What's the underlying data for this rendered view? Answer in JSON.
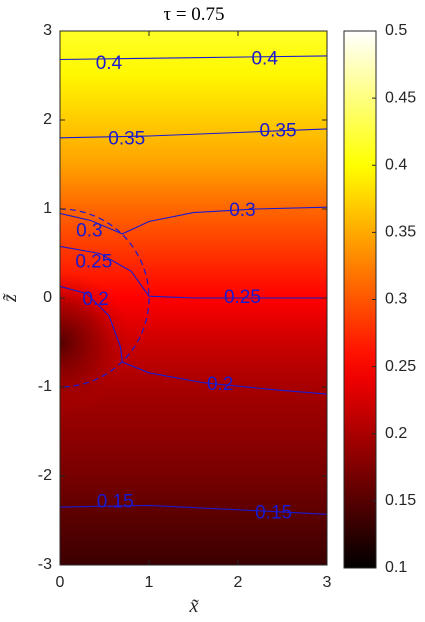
{
  "chart_data": {
    "type": "heatmap",
    "title": "τ  = 0.75",
    "xlabel": "x̃",
    "ylabel": "z̃",
    "xlim": [
      0,
      3
    ],
    "ylim": [
      -3,
      3
    ],
    "x_ticks": [
      0,
      1,
      2,
      3
    ],
    "y_ticks": [
      -3,
      -2,
      -1,
      0,
      1,
      2,
      3
    ],
    "x_tick_labels": [
      "0",
      "1",
      "2",
      "3"
    ],
    "y_tick_labels": [
      "-3",
      "-2",
      "-1",
      "0",
      "1",
      "2",
      "3"
    ],
    "colormap": "hot",
    "colorbar": {
      "limits": [
        0.1,
        0.5
      ],
      "ticks": [
        0.1,
        0.15,
        0.2,
        0.25,
        0.3,
        0.35,
        0.4,
        0.45,
        0.5
      ],
      "tick_labels": [
        "0.1",
        "0.15",
        "0.2",
        "0.25",
        "0.3",
        "0.35",
        "0.4",
        "0.45",
        "0.5"
      ]
    },
    "color_field": [
      {
        "z": 3.0,
        "value": 0.415
      },
      {
        "z": 2.5,
        "value": 0.395
      },
      {
        "z": 2.0,
        "value": 0.37
      },
      {
        "z": 1.5,
        "value": 0.345
      },
      {
        "z": 1.0,
        "value": 0.31
      },
      {
        "z": 0.5,
        "value": 0.28
      },
      {
        "z": 0.0,
        "value": 0.25
      },
      {
        "z": -0.5,
        "value": 0.22
      },
      {
        "z": -1.0,
        "value": 0.198
      },
      {
        "z": -1.5,
        "value": 0.185
      },
      {
        "z": -2.0,
        "value": 0.17
      },
      {
        "z": -2.5,
        "value": 0.152
      },
      {
        "z": -3.0,
        "value": 0.135
      }
    ],
    "inner_region": {
      "center_x": 0.0,
      "center_z": -0.5,
      "value": 0.15,
      "radius": 0.8
    },
    "boundary_circle": {
      "center_x": 0.0,
      "center_z": 0.0,
      "radius": 1.0,
      "style": "dashed"
    },
    "contours": [
      {
        "level": "0.4",
        "points": [
          [
            0,
            2.68
          ],
          [
            1.5,
            2.7
          ],
          [
            3,
            2.72
          ]
        ]
      },
      {
        "level": "0.35",
        "points": [
          [
            0,
            1.8
          ],
          [
            1,
            1.82
          ],
          [
            2,
            1.86
          ],
          [
            3,
            1.9
          ]
        ]
      },
      {
        "level": "0.3",
        "points": [
          [
            0,
            0.95
          ],
          [
            0.35,
            0.87
          ],
          [
            0.7,
            0.72
          ],
          [
            1.0,
            0.86
          ],
          [
            1.5,
            0.96
          ],
          [
            2.2,
            1.0
          ],
          [
            3,
            1.02
          ]
        ]
      },
      {
        "level": "0.25",
        "points": [
          [
            0,
            0.58
          ],
          [
            0.45,
            0.5
          ],
          [
            0.8,
            0.3
          ],
          [
            1.0,
            0.02
          ],
          [
            1.5,
            0.0
          ],
          [
            2.2,
            0.0
          ],
          [
            3,
            0.0
          ]
        ]
      },
      {
        "level": "0.2",
        "points": [
          [
            0,
            0.13
          ],
          [
            0.3,
            0.05
          ],
          [
            0.55,
            -0.2
          ],
          [
            0.68,
            -0.55
          ],
          [
            0.7,
            -0.72
          ],
          [
            1.0,
            -0.84
          ],
          [
            1.6,
            -0.95
          ],
          [
            2.4,
            -1.03
          ],
          [
            3,
            -1.08
          ]
        ]
      },
      {
        "level": "0.15",
        "points": [
          [
            0,
            -2.35
          ],
          [
            1,
            -2.33
          ],
          [
            2,
            -2.38
          ],
          [
            3,
            -2.43
          ]
        ]
      }
    ],
    "contour_labels": [
      {
        "text": "0.4",
        "x": 0.55,
        "z": 2.63
      },
      {
        "text": "0.4",
        "x": 2.3,
        "z": 2.68
      },
      {
        "text": "0.35",
        "x": 0.75,
        "z": 1.78
      },
      {
        "text": "0.35",
        "x": 2.45,
        "z": 1.87
      },
      {
        "text": "0.3",
        "x": 0.33,
        "z": 0.75
      },
      {
        "text": "0.3",
        "x": 2.05,
        "z": 0.98
      },
      {
        "text": "0.25",
        "x": 0.38,
        "z": 0.4
      },
      {
        "text": "0.25",
        "x": 2.05,
        "z": 0.0
      },
      {
        "text": "0.2",
        "x": 0.4,
        "z": -0.02
      },
      {
        "text": "0.2",
        "x": 1.8,
        "z": -0.98
      },
      {
        "text": "0.15",
        "x": 0.62,
        "z": -2.3
      },
      {
        "text": "0.15",
        "x": 2.4,
        "z": -2.42
      }
    ]
  }
}
